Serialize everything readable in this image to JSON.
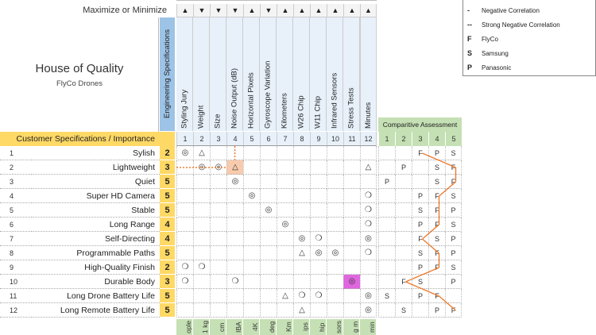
{
  "header": {
    "maximize_label": "Maximize or Minimize"
  },
  "title": {
    "main": "House of Quality",
    "sub": "FlyCo Drones"
  },
  "engineering_label": "Engineering Specifications",
  "customer_header": "Customer Specifications / Importance",
  "comparative_label": "Comparitive Assessment",
  "comparative_cols": [
    "1",
    "2",
    "3",
    "4",
    "5"
  ],
  "colors": {
    "accent_blue": "#9dc3e6",
    "accent_yellow": "#ffd966",
    "accent_green": "#c5e0b4",
    "orange": "#ed7d31",
    "highlight_peach": "#f8cbad",
    "highlight_magenta": "#e066e0"
  },
  "columns": [
    {
      "num": "1",
      "dir": "▲",
      "label": "Styling Jury",
      "unit": "ople"
    },
    {
      "num": "2",
      "dir": "▼",
      "label": "Weight",
      "unit": "1 kg"
    },
    {
      "num": "3",
      "dir": "▼",
      "label": "Size",
      "unit": "cm"
    },
    {
      "num": "4",
      "dir": "▼",
      "label": "Noise Output (dB)",
      "unit": "IBA"
    },
    {
      "num": "5",
      "dir": "▲",
      "label": "Horizontal Pixels",
      "unit": "4K"
    },
    {
      "num": "6",
      "dir": "▼",
      "label": "Gyroscope Variation",
      "unit": "deg"
    },
    {
      "num": "7",
      "dir": "▲",
      "label": "Kilometers",
      "unit": "Km"
    },
    {
      "num": "8",
      "dir": "▲",
      "label": "W26 Chip",
      "unit": "ips"
    },
    {
      "num": "9",
      "dir": "▲",
      "label": "W11 Chip",
      "unit": "hip"
    },
    {
      "num": "10",
      "dir": "▲",
      "label": "Infrared Sensors",
      "unit": "sors"
    },
    {
      "num": "11",
      "dir": "▲",
      "label": "Stress Tests",
      "unit": "g m"
    },
    {
      "num": "12",
      "dir": "▲",
      "label": "Minutes",
      "unit": "min"
    }
  ],
  "rows": [
    {
      "num": "1",
      "req": "Sylish",
      "imp": "2",
      "cells": [
        "◎",
        "△",
        "",
        "",
        "",
        "",
        "",
        "",
        "",
        "",
        "",
        ""
      ],
      "comp": [
        "",
        "",
        "F",
        "P",
        "S"
      ]
    },
    {
      "num": "2",
      "req": "Lightweight",
      "imp": "3",
      "cells": [
        "",
        "◎",
        "◎",
        "△",
        "",
        "",
        "",
        "",
        "",
        "",
        "",
        "△"
      ],
      "comp": [
        "",
        "P",
        "",
        "S",
        "F"
      ]
    },
    {
      "num": "3",
      "req": "Quiet",
      "imp": "5",
      "cells": [
        "",
        "",
        "",
        "◎",
        "",
        "",
        "",
        "",
        "",
        "",
        "",
        ""
      ],
      "comp": [
        "P",
        "",
        "",
        "S",
        "F"
      ]
    },
    {
      "num": "4",
      "req": "Super HD Camera",
      "imp": "5",
      "cells": [
        "",
        "",
        "",
        "",
        "◎",
        "",
        "",
        "",
        "",
        "",
        "",
        "❍"
      ],
      "comp": [
        "",
        "",
        "P",
        "F",
        "S"
      ]
    },
    {
      "num": "5",
      "req": "Stable",
      "imp": "5",
      "cells": [
        "",
        "",
        "",
        "",
        "",
        "◎",
        "",
        "",
        "",
        "",
        "",
        "❍"
      ],
      "comp": [
        "",
        "",
        "S",
        "F",
        "P"
      ]
    },
    {
      "num": "6",
      "req": "Long Range",
      "imp": "4",
      "cells": [
        "",
        "",
        "",
        "",
        "",
        "",
        "◎",
        "",
        "",
        "",
        "",
        "❍"
      ],
      "comp": [
        "",
        "",
        "P",
        "F",
        "S"
      ]
    },
    {
      "num": "7",
      "req": "Self-Directing",
      "imp": "4",
      "cells": [
        "",
        "",
        "",
        "",
        "",
        "",
        "",
        "◎",
        "❍",
        "",
        "",
        "◎"
      ],
      "comp": [
        "",
        "",
        "F",
        "S",
        "P"
      ]
    },
    {
      "num": "8",
      "req": "Programmable Paths",
      "imp": "5",
      "cells": [
        "",
        "",
        "",
        "",
        "",
        "",
        "",
        "△",
        "◎",
        "◎",
        "",
        "❍"
      ],
      "comp": [
        "",
        "",
        "S",
        "F",
        "P"
      ]
    },
    {
      "num": "9",
      "req": "High-Quality Finish",
      "imp": "2",
      "cells": [
        "❍",
        "❍",
        "",
        "",
        "",
        "",
        "",
        "",
        "",
        "",
        "",
        ""
      ],
      "comp": [
        "",
        "",
        "P",
        "F",
        "S"
      ]
    },
    {
      "num": "10",
      "req": "Durable Body",
      "imp": "3",
      "cells": [
        "❍",
        "",
        "",
        "❍",
        "",
        "",
        "",
        "",
        "",
        "",
        "◎",
        ""
      ],
      "comp": [
        "",
        "F",
        "S",
        "",
        "P"
      ]
    },
    {
      "num": "11",
      "req": "Long Drone Battery Life",
      "imp": "5",
      "cells": [
        "",
        "",
        "",
        "",
        "",
        "",
        "△",
        "❍",
        "❍",
        "",
        "",
        "◎"
      ],
      "comp": [
        "S",
        "",
        "P",
        "F",
        ""
      ]
    },
    {
      "num": "12",
      "req": "Long Remote Battery Life",
      "imp": "5",
      "cells": [
        "",
        "",
        "",
        "",
        "",
        "",
        "",
        "△",
        "",
        "",
        "",
        "◎"
      ],
      "comp": [
        "",
        "S",
        "",
        "P",
        "F"
      ]
    }
  ],
  "legend": [
    {
      "symbol": "-",
      "label": "Negative Correlation"
    },
    {
      "symbol": "--",
      "label": "Strong Negative Correlation"
    },
    {
      "symbol": "F",
      "label": "FlyCo"
    },
    {
      "symbol": "S",
      "label": "Samsung"
    },
    {
      "symbol": "P",
      "label": "Panasonic"
    }
  ]
}
